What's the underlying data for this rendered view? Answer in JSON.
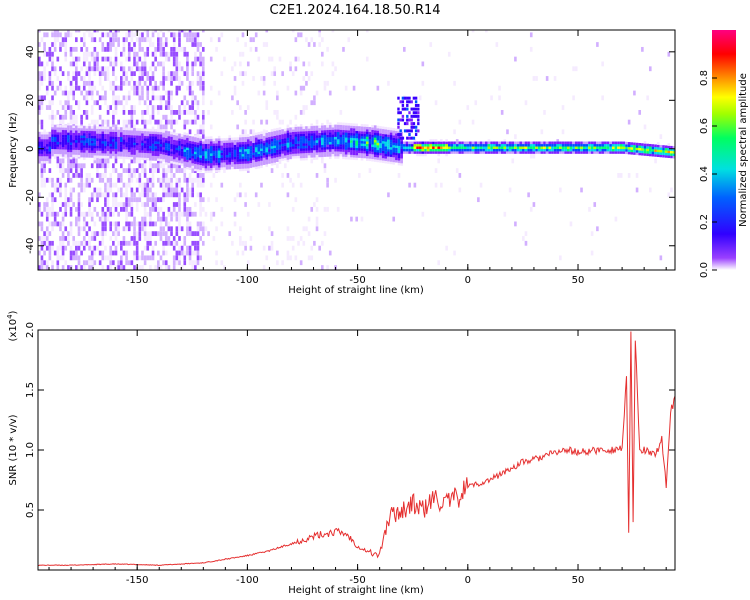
{
  "title": "C2E1.2024.164.18.50.R14",
  "chart_data": [
    {
      "type": "heatmap",
      "xlabel": "Height of straight line (km)",
      "ylabel": "Frequency (Hz)",
      "xlim": [
        -195,
        94
      ],
      "ylim": [
        -50,
        49
      ],
      "x_ticks": [
        -150,
        -100,
        -50,
        0,
        50
      ],
      "x_tick_labels": [
        "-150",
        "-100",
        "-50",
        "0",
        "50"
      ],
      "y_ticks": [
        -40,
        -20,
        0,
        20,
        40
      ],
      "y_tick_labels": [
        "-40",
        "-20",
        "0",
        "20",
        "40"
      ],
      "colorbar": {
        "label": "Normalized spectral amplitude",
        "range": [
          0,
          1
        ],
        "ticks": [
          0.0,
          0.2,
          0.4,
          0.6,
          0.8
        ],
        "tick_labels": [
          "0.0",
          "0.2",
          "0.4",
          "0.6",
          "0.8"
        ],
        "colormap": [
          "#ffffff",
          "#7f00ff",
          "#0000ff",
          "#00c8ff",
          "#00ff7f",
          "#80ff00",
          "#ffff00",
          "#ff8000",
          "#ff0000",
          "#ff0080"
        ]
      },
      "ridge": [
        {
          "x": -190,
          "f": 3
        },
        {
          "x": -160,
          "f": 2
        },
        {
          "x": -140,
          "f": 1
        },
        {
          "x": -120,
          "f": -3
        },
        {
          "x": -100,
          "f": -2
        },
        {
          "x": -80,
          "f": 2
        },
        {
          "x": -60,
          "f": 3
        },
        {
          "x": -45,
          "f": 2
        },
        {
          "x": -30,
          "f": 0
        },
        {
          "x": -20,
          "f": 0
        },
        {
          "x": 0,
          "f": 0
        },
        {
          "x": 50,
          "f": 0
        },
        {
          "x": 70,
          "f": 0
        },
        {
          "x": 94,
          "f": -2
        }
      ]
    },
    {
      "type": "line",
      "xlabel": "Height of straight line (km)",
      "ylabel": "SNR (10 * v/v)",
      "y_multiplier_label": "(x10",
      "y_multiplier_exp": "4",
      "y_multiplier_close": ")",
      "xlim": [
        -195,
        94
      ],
      "ylim": [
        0,
        2.0
      ],
      "x_ticks": [
        -150,
        -100,
        -50,
        0,
        50
      ],
      "x_tick_labels": [
        "-150",
        "-100",
        "-50",
        "0",
        "50"
      ],
      "y_ticks": [
        0.5,
        1.0,
        1.5,
        2.0
      ],
      "y_tick_labels": [
        "0.5",
        "1.0",
        "1.5",
        "2.0"
      ],
      "color": "#e53030",
      "series": [
        {
          "x": [
            -195,
            -180,
            -160,
            -140,
            -130,
            -120,
            -110,
            -100,
            -90,
            -80,
            -70,
            -60,
            -55,
            -50,
            -45,
            -40,
            -38,
            -35,
            -30,
            -25,
            -20,
            -15,
            -10,
            -5,
            0,
            5,
            10,
            15,
            20,
            25,
            30,
            35,
            40,
            45,
            50,
            55,
            60,
            65,
            70,
            72,
            73,
            74,
            75,
            76,
            78,
            80,
            85,
            88,
            90,
            92,
            94
          ],
          "y": [
            0.04,
            0.04,
            0.05,
            0.04,
            0.05,
            0.06,
            0.09,
            0.12,
            0.16,
            0.22,
            0.28,
            0.32,
            0.3,
            0.2,
            0.15,
            0.12,
            0.3,
            0.45,
            0.5,
            0.55,
            0.5,
            0.6,
            0.55,
            0.6,
            0.7,
            0.72,
            0.75,
            0.8,
            0.85,
            0.9,
            0.92,
            0.95,
            0.98,
            1.0,
            0.98,
            0.99,
            1.0,
            1.0,
            1.02,
            1.6,
            0.3,
            2.0,
            0.4,
            1.9,
            1.0,
            1.0,
            0.95,
            1.1,
            0.7,
            1.3,
            1.45
          ]
        }
      ]
    }
  ]
}
